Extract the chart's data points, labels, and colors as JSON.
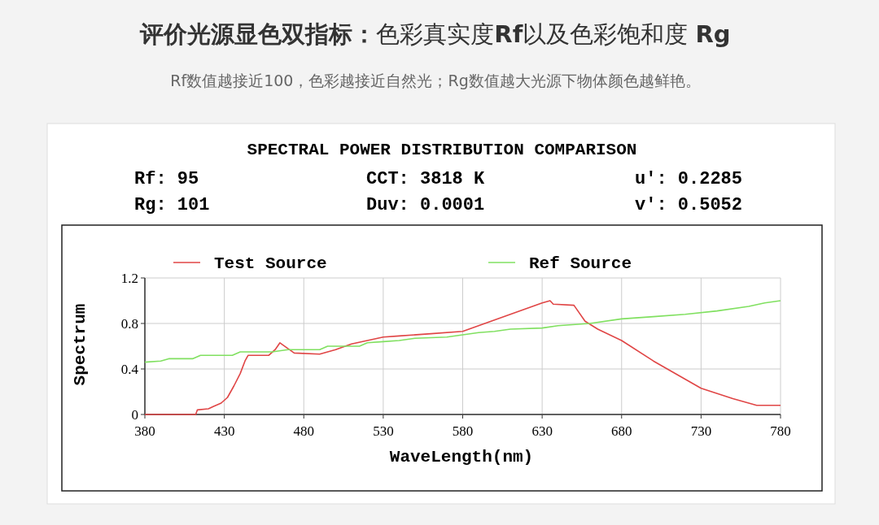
{
  "chart_data": {
    "type": "line",
    "title": "**评价光源显色双指标：**色彩真实度**Rf**以及色彩饱和度 **Rg**",
    "subtitle": "Rf数值越接近100，色彩越接近自然光；Rg数值越大光源下物体颜色越鲜艳。",
    "annotations": [
      "SPECTRAL POWER DISTRIBUTION COMPARISON",
      "Rf: 95",
      "CCT: 3818 K",
      "u': 0.2285",
      "Rg: 101",
      "Duv: 0.0001",
      "v': 0.5052"
    ],
    "xlabel": "WaveLength(nm)",
    "ylabel": "Spectrum",
    "xlim": [
      380,
      780
    ],
    "xticks": [
      380,
      430,
      480,
      530,
      580,
      630,
      680,
      730,
      780
    ],
    "ylim": [
      0,
      1.2
    ],
    "yticks": [
      0,
      0.4,
      0.8,
      1.2
    ],
    "grid": true,
    "legend": "top",
    "series": [
      {
        "name": "Test Source",
        "color": "#e04545",
        "x": [
          380,
          412,
          413,
          420,
          423,
          428,
          432,
          436,
          440,
          443,
          445,
          458,
          462,
          465,
          470,
          474,
          490,
          500,
          510,
          520,
          530,
          540,
          560,
          580,
          600,
          620,
          630,
          635,
          637,
          650,
          657,
          665,
          680,
          700,
          730,
          750,
          760,
          765,
          780
        ],
        "values": [
          0,
          0,
          0.04,
          0.05,
          0.07,
          0.1,
          0.15,
          0.25,
          0.36,
          0.47,
          0.52,
          0.52,
          0.57,
          0.63,
          0.58,
          0.54,
          0.53,
          0.57,
          0.62,
          0.65,
          0.68,
          0.69,
          0.71,
          0.73,
          0.83,
          0.93,
          0.98,
          1.0,
          0.97,
          0.96,
          0.82,
          0.75,
          0.65,
          0.47,
          0.23,
          0.14,
          0.1,
          0.08,
          0.08
        ]
      },
      {
        "name": "Ref Source",
        "color": "#80e060",
        "x": [
          380,
          390,
          395,
          410,
          415,
          435,
          440,
          460,
          470,
          490,
          495,
          515,
          520,
          530,
          540,
          550,
          570,
          580,
          590,
          600,
          610,
          630,
          640,
          660,
          680,
          700,
          720,
          740,
          760,
          770,
          780
        ],
        "values": [
          0.46,
          0.47,
          0.49,
          0.49,
          0.52,
          0.52,
          0.55,
          0.55,
          0.57,
          0.57,
          0.6,
          0.6,
          0.63,
          0.64,
          0.65,
          0.67,
          0.68,
          0.7,
          0.72,
          0.73,
          0.75,
          0.76,
          0.78,
          0.8,
          0.84,
          0.86,
          0.88,
          0.91,
          0.95,
          0.98,
          1.0
        ]
      }
    ]
  }
}
